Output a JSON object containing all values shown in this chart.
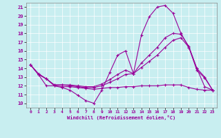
{
  "xlabel": "Windchill (Refroidissement éolien,°C)",
  "background_color": "#c8eef0",
  "line_color": "#990099",
  "xlim": [
    -0.5,
    23.5
  ],
  "ylim": [
    9.5,
    21.5
  ],
  "yticks": [
    10,
    11,
    12,
    13,
    14,
    15,
    16,
    17,
    18,
    19,
    20,
    21
  ],
  "xticks": [
    0,
    1,
    2,
    3,
    4,
    5,
    6,
    7,
    8,
    9,
    10,
    11,
    12,
    13,
    14,
    15,
    16,
    17,
    18,
    19,
    20,
    21,
    22,
    23
  ],
  "line1_x": [
    0,
    1,
    2,
    3,
    4,
    5,
    6,
    7,
    8,
    9,
    10,
    11,
    12,
    13,
    14,
    15,
    16,
    17,
    18,
    19,
    20,
    21,
    22,
    23
  ],
  "line1_y": [
    14.4,
    13.4,
    12.8,
    12.0,
    11.8,
    11.5,
    10.9,
    10.3,
    10.0,
    11.5,
    13.5,
    15.5,
    16.0,
    13.4,
    17.8,
    19.9,
    21.0,
    21.2,
    20.3,
    18.0,
    16.4,
    13.8,
    12.9,
    11.5
  ],
  "line2_x": [
    0,
    1,
    2,
    3,
    4,
    5,
    6,
    7,
    8,
    9,
    10,
    11,
    12,
    13,
    14,
    15,
    16,
    17,
    18,
    19,
    20,
    21,
    22,
    23
  ],
  "line2_y": [
    14.4,
    13.3,
    12.8,
    12.1,
    12.1,
    12.1,
    12.0,
    11.9,
    11.9,
    12.2,
    12.7,
    13.3,
    13.8,
    13.4,
    14.6,
    15.5,
    16.4,
    17.5,
    18.0,
    17.9,
    16.5,
    14.0,
    13.0,
    11.5
  ],
  "line3_x": [
    0,
    1,
    2,
    3,
    4,
    5,
    6,
    7,
    8,
    9,
    10,
    11,
    12,
    13,
    14,
    15,
    16,
    17,
    18,
    19,
    20,
    21,
    22,
    23
  ],
  "line3_y": [
    14.4,
    13.3,
    12.8,
    12.1,
    12.1,
    12.0,
    11.9,
    11.8,
    11.8,
    12.0,
    12.4,
    12.8,
    13.3,
    13.4,
    14.1,
    14.8,
    15.5,
    16.4,
    17.2,
    17.5,
    16.4,
    14.0,
    11.9,
    11.5
  ],
  "line4_x": [
    0,
    1,
    2,
    3,
    4,
    5,
    6,
    7,
    8,
    9,
    10,
    11,
    12,
    13,
    14,
    15,
    16,
    17,
    18,
    19,
    20,
    21,
    22,
    23
  ],
  "line4_y": [
    14.4,
    13.3,
    12.0,
    12.0,
    11.9,
    11.9,
    11.8,
    11.7,
    11.6,
    11.7,
    11.8,
    11.8,
    11.9,
    11.9,
    12.0,
    12.0,
    12.0,
    12.1,
    12.1,
    12.1,
    11.8,
    11.6,
    11.5,
    11.5
  ]
}
